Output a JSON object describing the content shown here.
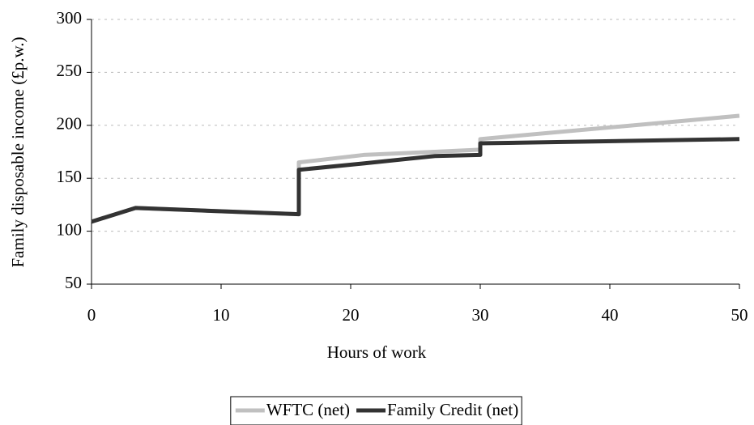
{
  "chart_data": {
    "type": "line",
    "xlabel": "Hours of work",
    "ylabel": "Family disposable income (£p.w.)",
    "xlim": [
      0,
      50
    ],
    "xticks": [
      0,
      10,
      20,
      30,
      40,
      50
    ],
    "ylim": [
      50,
      300
    ],
    "yticks": [
      50,
      100,
      150,
      200,
      250,
      300
    ],
    "grid": true,
    "legend": "bottom",
    "series": [
      {
        "name": "WFTC (net)",
        "color": "#c0c0c0",
        "x": [
          0,
          3.4,
          16,
          16,
          21,
          26.5,
          30,
          30,
          50
        ],
        "values": [
          109,
          122,
          116,
          165,
          172,
          175,
          177,
          187,
          209
        ]
      },
      {
        "name": "Family Credit (net)",
        "color": "#333333",
        "x": [
          0,
          3.4,
          16,
          16,
          21,
          26.5,
          30,
          30,
          50
        ],
        "values": [
          109,
          122,
          116,
          158,
          164,
          171,
          172,
          183,
          187
        ]
      }
    ]
  }
}
